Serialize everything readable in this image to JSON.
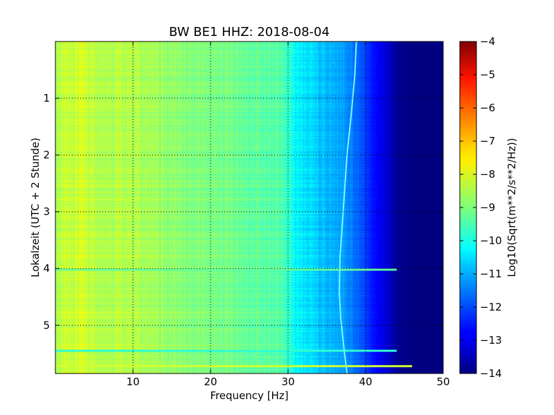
{
  "chart_data": {
    "type": "heatmap",
    "title": "BW BE1 HHZ: 2018-08-04",
    "xlabel": "Frequency [Hz]",
    "ylabel": "Lokalzeit (UTC + 2 Stunde)",
    "xlim": [
      0,
      50
    ],
    "ylim": [
      5.85,
      0
    ],
    "x_ticks": [
      10,
      20,
      30,
      40,
      50
    ],
    "x_tick_labels": [
      "10",
      "20",
      "30",
      "40",
      "50"
    ],
    "y_ticks": [
      1,
      2,
      3,
      4,
      5
    ],
    "y_tick_labels": [
      "1",
      "2",
      "3",
      "4",
      "5"
    ],
    "grid": true,
    "colorbar": {
      "label": "Log10(Sqrt(m**2/s**2/Hz))",
      "colormap": "jet",
      "range": [
        -14,
        -4
      ],
      "ticks": [
        -14,
        -13,
        -12,
        -11,
        -10,
        -9,
        -8,
        -7,
        -6,
        -5,
        -4
      ],
      "tick_labels": [
        "−14",
        "−13",
        "−12",
        "−11",
        "−10",
        "−9",
        "−8",
        "−7",
        "−6",
        "−5",
        "−4"
      ]
    },
    "spectrum_profile": {
      "frequency_hz": [
        0,
        3,
        6,
        10,
        14,
        18,
        22,
        26,
        29,
        31,
        34,
        37,
        39,
        41,
        43,
        44,
        46,
        50
      ],
      "log10_amplitude": [
        -8.5,
        -8.2,
        -8.4,
        -8.5,
        -8.8,
        -9.0,
        -9.1,
        -9.3,
        -9.5,
        -10.3,
        -10.8,
        -11.2,
        -11.8,
        -12.6,
        -13.3,
        -13.8,
        -14,
        -14
      ]
    },
    "spectral_line": {
      "time_h": [
        0.0,
        0.6,
        1.2,
        2.0,
        2.6,
        3.2,
        3.8,
        4.4,
        4.9,
        5.4,
        5.85
      ],
      "frequency_hz": [
        38.8,
        38.6,
        38.2,
        37.6,
        37.3,
        37.0,
        36.7,
        36.6,
        36.8,
        37.2,
        37.6
      ]
    },
    "horizontal_events": [
      {
        "time_h": 4.02,
        "level": -9.3,
        "max_frequency_hz": 44
      },
      {
        "time_h": 5.45,
        "level": -9.8,
        "max_frequency_hz": 44
      },
      {
        "time_h": 5.72,
        "level": -8.2,
        "max_frequency_hz": 46
      }
    ]
  }
}
